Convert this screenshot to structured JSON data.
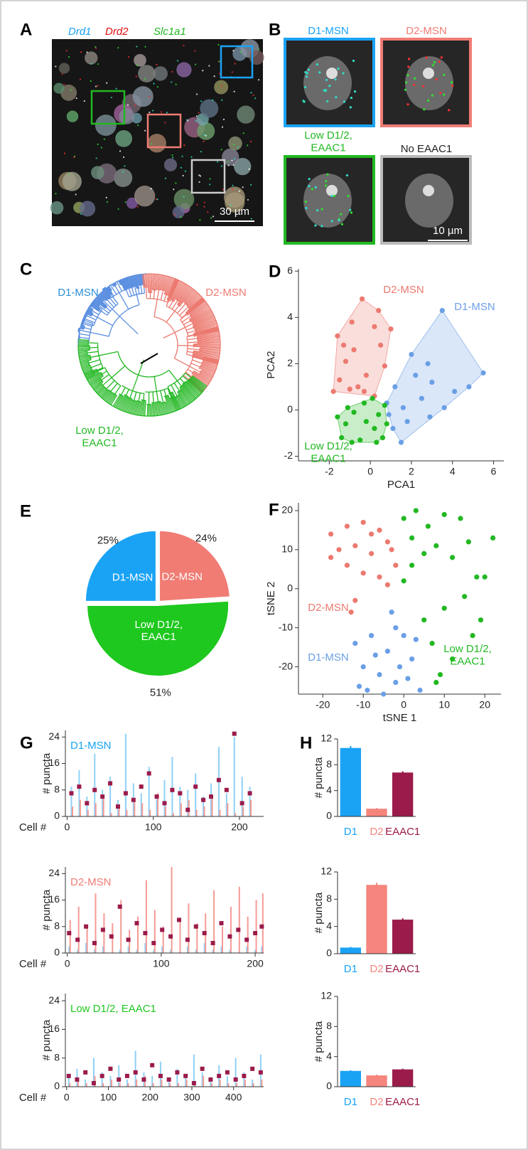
{
  "panels": {
    "A": {
      "letter": "A",
      "labels": [
        "Drd1",
        "Drd2",
        "Slc1a1"
      ],
      "scale_bar": "30 µm"
    },
    "B": {
      "letter": "B",
      "labels": [
        "D1-MSN",
        "D2-MSN",
        "Low D1/2, EAAC1",
        "No EAAC1"
      ],
      "scale_bar": "10 µm"
    },
    "C": {
      "letter": "C",
      "labels": [
        "D1-MSN",
        "D2-MSN",
        "Low D1/2, EAAC1"
      ]
    }
  },
  "chart_data": [
    {
      "type": "scatter",
      "panel": "D",
      "xlabel": "PCA1",
      "ylabel": "PCA2",
      "xlim": [
        -3.5,
        6.5
      ],
      "ylim": [
        -2.2,
        6.1
      ],
      "xticks": [
        -2,
        0,
        2,
        4,
        6
      ],
      "yticks": [
        -2,
        0,
        2,
        4,
        6
      ],
      "hulls": true,
      "series": [
        {
          "name": "D2-MSN",
          "color": "#ec7a70",
          "x": [
            -1.6,
            -1.2,
            -0.8,
            -0.4,
            -0.2,
            -1.5,
            -1.0,
            0.2,
            0.5,
            0.7,
            0.2,
            -0.6,
            -1.8,
            0.4,
            -0.9,
            1.0,
            -0.3,
            -1.3
          ],
          "y": [
            3.2,
            2.1,
            2.6,
            4.8,
            1.5,
            1.3,
            0.9,
            3.6,
            2.8,
            1.9,
            0.6,
            1.0,
            0.8,
            4.3,
            3.8,
            3.5,
            0.8,
            2.8
          ]
        },
        {
          "name": "D1-MSN",
          "color": "#6a9fe6",
          "x": [
            3.5,
            5.5,
            2.0,
            1.2,
            2.5,
            0.9,
            1.8,
            3.0,
            4.1,
            1.5,
            2.8,
            0.8,
            3.6,
            2.2,
            1.1,
            4.8,
            1.6,
            2.9
          ],
          "y": [
            4.3,
            1.6,
            2.4,
            1.0,
            0.5,
            -0.2,
            -0.5,
            1.2,
            0.8,
            -1.4,
            2.0,
            0.3,
            0.1,
            1.5,
            -0.8,
            1.0,
            0.1,
            -0.3
          ]
        },
        {
          "name": "Low D1/2, EAAC1",
          "color": "#22b822",
          "x": [
            -1.2,
            -0.8,
            -0.3,
            0.2,
            0.6,
            -1.4,
            -0.5,
            0.1,
            -0.9,
            0.4,
            -1.6,
            0.7,
            -0.2,
            0.3,
            -1.1,
            0.8
          ],
          "y": [
            -0.6,
            -0.1,
            0.3,
            -0.8,
            -1.2,
            -1.2,
            -1.3,
            0.5,
            -1.4,
            -0.2,
            -0.3,
            0.2,
            -0.5,
            -1.4,
            0.1,
            -0.6
          ]
        }
      ]
    },
    {
      "type": "pie",
      "panel": "E",
      "categories": [
        "D1-MSN",
        "D2-MSN",
        "Low D1/2, EAAC1"
      ],
      "values": [
        25,
        24,
        51
      ],
      "value_labels": [
        "25%",
        "24%",
        "51%"
      ],
      "colors": [
        "#1aa3f5",
        "#f07c74",
        "#1ec81e"
      ]
    },
    {
      "type": "scatter",
      "panel": "F",
      "xlabel": "tSNE 1",
      "ylabel": "tSNE 2",
      "xlim": [
        -26,
        24
      ],
      "ylim": [
        -27,
        22
      ],
      "xticks": [
        -20,
        -10,
        0,
        10,
        20
      ],
      "yticks": [
        -20,
        -10,
        0,
        10,
        20
      ],
      "hulls": false,
      "series": [
        {
          "name": "D2-MSN",
          "color": "#ec7a70",
          "x": [
            -18,
            -14,
            -10,
            -6,
            -16,
            -12,
            -8,
            -4,
            -2,
            -14,
            -10,
            -6,
            -3,
            -18,
            -8,
            -4,
            -13,
            -12
          ],
          "y": [
            14,
            16,
            17,
            15,
            10,
            11,
            9,
            12,
            6,
            6,
            4,
            3,
            10,
            8,
            14,
            1,
            -6,
            -3
          ]
        },
        {
          "name": "D1-MSN",
          "color": "#6a9fe6",
          "x": [
            -12,
            -8,
            -4,
            -2,
            0,
            2,
            -10,
            -6,
            -2,
            -9,
            -5,
            1,
            3,
            -7,
            -1,
            4,
            -11,
            -3
          ],
          "y": [
            -14,
            -12,
            -16,
            -10,
            -12,
            -18,
            -20,
            -22,
            -24,
            -26,
            -27,
            -23,
            -13,
            -17,
            -20,
            -26,
            -25,
            -6
          ]
        },
        {
          "name": "Low D1/2, EAAC1",
          "color": "#22b822",
          "x": [
            0,
            3,
            6,
            10,
            14,
            2,
            5,
            8,
            12,
            16,
            18,
            0,
            5,
            10,
            15,
            19,
            7,
            12,
            17,
            9,
            22,
            2,
            8,
            20
          ],
          "y": [
            18,
            20,
            16,
            19,
            18,
            13,
            9,
            11,
            8,
            12,
            3,
            2,
            -8,
            -5,
            -2,
            -8,
            -14,
            -18,
            -12,
            -22,
            13,
            6,
            -24,
            3
          ]
        }
      ]
    },
    {
      "type": "stem",
      "panel": "G",
      "annotation": "D1-MSN",
      "annotation_color": "#1aa3f5",
      "xlabel": "Cell #",
      "ylabel": "# puncta",
      "xlim": [
        -2,
        228
      ],
      "ylim": [
        0,
        26
      ],
      "xticks": [
        0,
        100,
        200
      ],
      "yticks": [
        0,
        8,
        16,
        24
      ],
      "x": [
        5,
        14,
        23,
        32,
        41,
        50,
        59,
        68,
        77,
        86,
        95,
        104,
        113,
        122,
        131,
        140,
        149,
        158,
        167,
        176,
        185,
        194,
        203,
        212
      ],
      "series": [
        {
          "color": "#8fd0f7",
          "marker": "line",
          "values": [
            9,
            14,
            6,
            19,
            8,
            12,
            5,
            25,
            10,
            7,
            15,
            6,
            11,
            18,
            9,
            8,
            13,
            6,
            10,
            21,
            7,
            24,
            12,
            9
          ]
        },
        {
          "color": "#f59a94",
          "marker": "line",
          "values": [
            3,
            5,
            2,
            4,
            6,
            1,
            3,
            2,
            5,
            4,
            2,
            7,
            3,
            1,
            4,
            5,
            2,
            3,
            6,
            2,
            4,
            1,
            3,
            5
          ]
        },
        {
          "color": "#9b1b4a",
          "marker": "square",
          "values": [
            7,
            9,
            4,
            8,
            6,
            10,
            3,
            7,
            5,
            9,
            13,
            6,
            4,
            8,
            7,
            2,
            9,
            5,
            6,
            11,
            8,
            25,
            4,
            7
          ]
        }
      ]
    },
    {
      "type": "stem",
      "annotation": "D2-MSN",
      "annotation_color": "#f07c74",
      "xlabel": "Cell #",
      "ylabel": "# puncta",
      "xlim": [
        -2,
        209
      ],
      "ylim": [
        0,
        26
      ],
      "xticks": [
        0,
        100,
        200
      ],
      "yticks": [
        0,
        8,
        16,
        24
      ],
      "x": [
        2,
        11,
        20,
        29,
        38,
        47,
        56,
        65,
        74,
        83,
        92,
        101,
        110,
        119,
        128,
        137,
        146,
        155,
        164,
        173,
        182,
        191,
        200,
        207
      ],
      "series": [
        {
          "color": "#8fd0f7",
          "marker": "line",
          "values": [
            2,
            1,
            3,
            1,
            2,
            0,
            1,
            2,
            1,
            3,
            1,
            2,
            1,
            0,
            2,
            1,
            3,
            1,
            2,
            1,
            0,
            2,
            1,
            2
          ]
        },
        {
          "color": "#f59a94",
          "marker": "line",
          "values": [
            10,
            14,
            8,
            18,
            12,
            9,
            16,
            7,
            11,
            22,
            13,
            8,
            26,
            10,
            15,
            9,
            12,
            19,
            8,
            14,
            20,
            11,
            16,
            18
          ]
        },
        {
          "color": "#9b1b4a",
          "marker": "square",
          "values": [
            6,
            4,
            8,
            3,
            7,
            5,
            14,
            4,
            9,
            6,
            3,
            7,
            5,
            10,
            4,
            8,
            6,
            3,
            9,
            5,
            7,
            4,
            6,
            8
          ]
        }
      ]
    },
    {
      "type": "stem",
      "annotation": "Low D1/2, EAAC1",
      "annotation_color": "#1ec81e",
      "xlabel": "Cell #",
      "ylabel": "# puncta",
      "xlim": [
        -3,
        472
      ],
      "ylim": [
        0,
        26
      ],
      "xticks": [
        0,
        100,
        200,
        300,
        400
      ],
      "yticks": [
        0,
        8,
        16,
        24
      ],
      "x": [
        5,
        25,
        45,
        65,
        85,
        105,
        125,
        145,
        165,
        185,
        205,
        225,
        245,
        265,
        285,
        305,
        325,
        345,
        365,
        385,
        405,
        425,
        445,
        465
      ],
      "series": [
        {
          "color": "#8fd0f7",
          "marker": "line",
          "values": [
            3,
            5,
            2,
            8,
            4,
            3,
            6,
            2,
            10,
            4,
            3,
            7,
            2,
            5,
            3,
            9,
            4,
            2,
            6,
            3,
            8,
            4,
            2,
            9
          ]
        },
        {
          "color": "#f59a94",
          "marker": "line",
          "values": [
            1,
            2,
            1,
            3,
            1,
            2,
            1,
            1,
            2,
            3,
            1,
            2,
            1,
            1,
            2,
            1,
            3,
            1,
            2,
            1,
            1,
            2,
            1,
            2
          ]
        },
        {
          "color": "#9b1b4a",
          "marker": "square",
          "values": [
            3,
            2,
            4,
            1,
            3,
            5,
            2,
            3,
            4,
            2,
            6,
            3,
            2,
            4,
            3,
            1,
            5,
            2,
            3,
            4,
            2,
            3,
            5,
            4
          ]
        }
      ]
    },
    {
      "type": "bar",
      "panel": "H",
      "ylabel": "# puncta",
      "ylim": [
        0,
        12
      ],
      "yticks": [
        0,
        4,
        8,
        12
      ],
      "categories": [
        "D1",
        "D2",
        "EAAC1"
      ],
      "values": [
        10.6,
        1.2,
        6.8
      ],
      "errors": [
        0.3,
        0.1,
        0.2
      ],
      "colors": [
        "#1aa3f5",
        "#f5857d",
        "#9b1b4a"
      ]
    },
    {
      "type": "bar",
      "ylabel": "# puncta",
      "ylim": [
        0,
        12
      ],
      "yticks": [
        0,
        4,
        8,
        12
      ],
      "categories": [
        "D1",
        "D2",
        "EAAC1"
      ],
      "values": [
        0.9,
        10.1,
        5.0
      ],
      "errors": [
        0.1,
        0.3,
        0.2
      ],
      "colors": [
        "#1aa3f5",
        "#f5857d",
        "#9b1b4a"
      ]
    },
    {
      "type": "bar",
      "ylabel": "# puncta",
      "ylim": [
        0,
        12
      ],
      "yticks": [
        0,
        4,
        8,
        12
      ],
      "categories": [
        "D1",
        "D2",
        "EAAC1"
      ],
      "values": [
        2.1,
        1.5,
        2.3
      ],
      "errors": [
        0.1,
        0.1,
        0.1
      ],
      "colors": [
        "#1aa3f5",
        "#f5857d",
        "#9b1b4a"
      ]
    }
  ]
}
